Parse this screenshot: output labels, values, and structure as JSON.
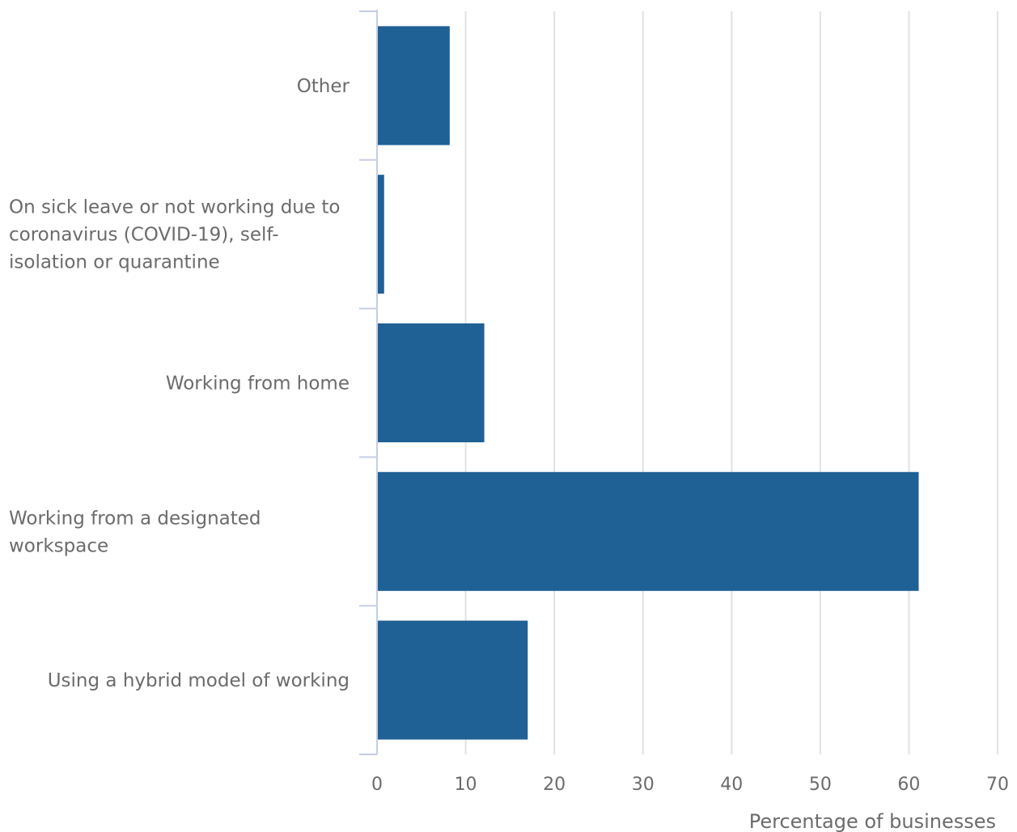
{
  "chart_data": {
    "type": "bar",
    "orientation": "horizontal",
    "categories": [
      "Other",
      "On sick leave or not working due to coronavirus (COVID-19), self-isolation or quarantine",
      "Working from home",
      "Working from a designated workspace",
      "Using a hybrid model of working"
    ],
    "category_lines": [
      [
        "Other"
      ],
      [
        "On sick leave or not working due to",
        "coronavirus (COVID-19), self-",
        "isolation or quarantine"
      ],
      [
        "Working from home"
      ],
      [
        "Working from a designated",
        "workspace"
      ],
      [
        "Using a hybrid model of working"
      ]
    ],
    "category_align": [
      "right",
      "left",
      "right",
      "left",
      "right"
    ],
    "values": [
      8.2,
      0.8,
      12.1,
      61.1,
      17.0
    ],
    "xlabel": "Percentage of businesses",
    "ylabel": "",
    "xlim": [
      0,
      70
    ],
    "xticks": [
      "0",
      "10",
      "20",
      "30",
      "40",
      "50",
      "60",
      "70"
    ],
    "grid": true,
    "legend": "none",
    "colors": {
      "bar": "#1f6095",
      "grid": "#e2e2e2",
      "axis": "#c6cde6",
      "text": "#6b6b6b"
    }
  }
}
